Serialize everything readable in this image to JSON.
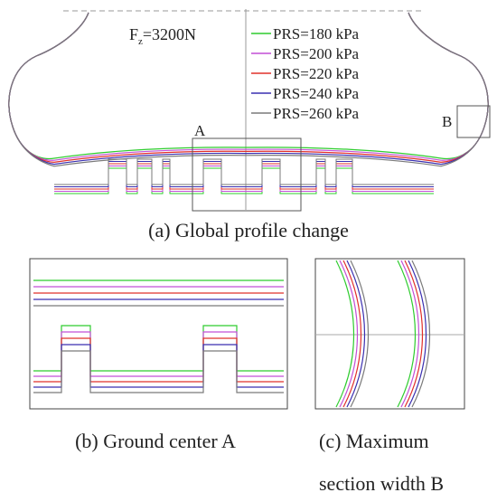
{
  "main_panel": {
    "load_label": "F",
    "load_subscript": "z",
    "load_value": "=3200N",
    "region_a_label": "A",
    "region_b_label": "B",
    "caption": "(a) Global profile change"
  },
  "legend": [
    {
      "label": "PRS=180 kPa",
      "color": "#2ecc2e"
    },
    {
      "label": "PRS=200 kPa",
      "color": "#c24fd6"
    },
    {
      "label": "PRS=220 kPa",
      "color": "#e0302a"
    },
    {
      "label": "PRS=240 kPa",
      "color": "#3a2fb0"
    },
    {
      "label": "PRS=260 kPa",
      "color": "#7a7a7a"
    }
  ],
  "detail_panels": [
    {
      "caption": "(b) Ground center A"
    },
    {
      "caption_line1": "(c) Maximum",
      "caption_line2": "section width B"
    }
  ]
}
